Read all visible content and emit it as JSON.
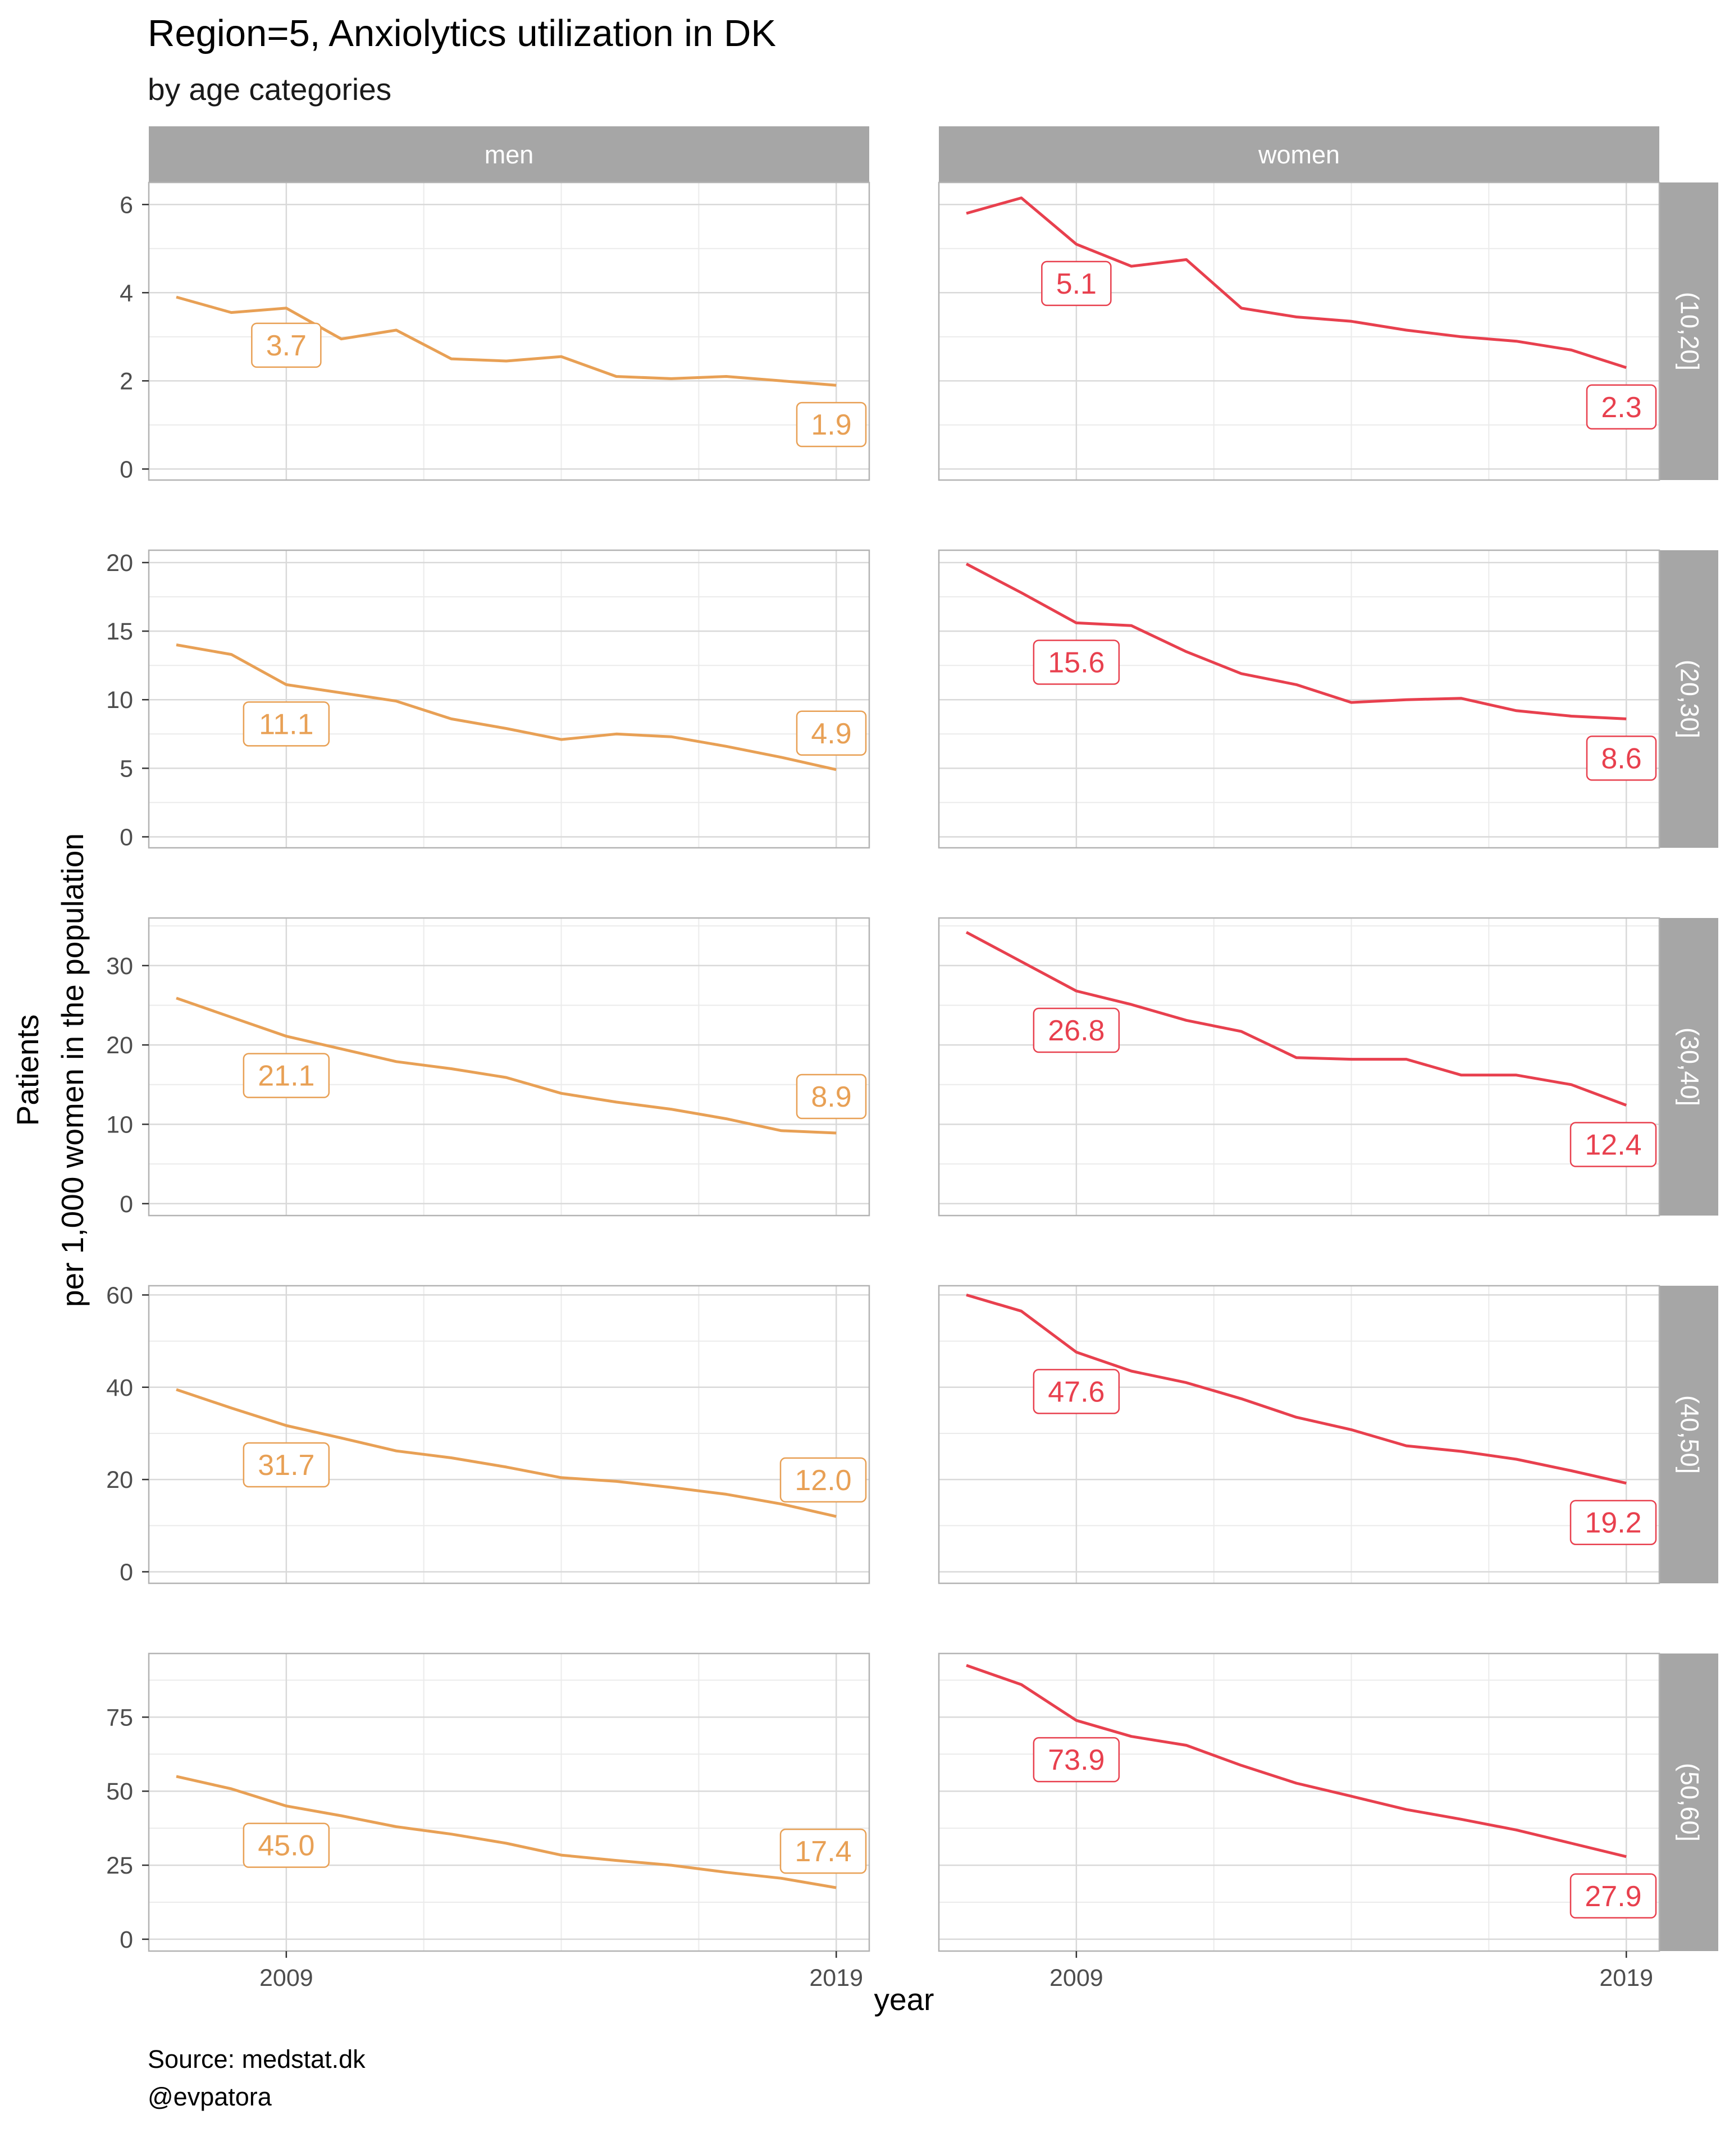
{
  "title": "Region=5, Anxiolytics utilization in DK",
  "subtitle": "by age categories",
  "caption_lines": [
    "Source: medstat.dk",
    "@evpatora"
  ],
  "colors": {
    "men": "#E8A055",
    "women": "#E8404E",
    "strip": "#A6A6A6",
    "grid_major": "#D9D9D9",
    "grid_minor": "#EBEBEB",
    "panel_border": "#B3B3B3"
  },
  "chart_data": {
    "type": "line",
    "xlabel": "year",
    "ylabel_lines": [
      "Patients",
      "per 1,000 women in the population"
    ],
    "x_ticks": [
      2009,
      2019
    ],
    "xlim": [
      2006.5,
      2019.6
    ],
    "columns": [
      "men",
      "women"
    ],
    "rows": [
      "(10,20]",
      "(20,30]",
      "(30,40]",
      "(40,50]",
      "(50,60]"
    ],
    "panels": [
      {
        "row": "(10,20]",
        "ylim": [
          -0.25,
          6.5
        ],
        "y_ticks": [
          0,
          2,
          4,
          6
        ],
        "men": {
          "x": [
            2007,
            2008,
            2009,
            2010,
            2011,
            2012,
            2013,
            2014,
            2015,
            2016,
            2017,
            2018,
            2019
          ],
          "y": [
            3.9,
            3.55,
            3.65,
            2.95,
            3.15,
            2.5,
            2.45,
            2.55,
            2.1,
            2.05,
            2.1,
            2.0,
            1.9
          ],
          "labels": [
            {
              "x": 2009,
              "y": 3.7,
              "text": "3.7"
            },
            {
              "x": 2019,
              "y": 1.9,
              "text": "1.9"
            }
          ]
        },
        "women": {
          "x": [
            2007,
            2008,
            2009,
            2010,
            2011,
            2012,
            2013,
            2014,
            2015,
            2016,
            2017,
            2018,
            2019
          ],
          "y": [
            5.8,
            6.15,
            5.1,
            4.6,
            4.75,
            3.65,
            3.45,
            3.35,
            3.15,
            3.0,
            2.9,
            2.7,
            2.3
          ],
          "labels": [
            {
              "x": 2009,
              "y": 5.1,
              "text": "5.1"
            },
            {
              "x": 2019,
              "y": 2.3,
              "text": "2.3"
            }
          ]
        }
      },
      {
        "row": "(20,30]",
        "ylim": [
          -0.8,
          20.9
        ],
        "y_ticks": [
          0,
          5,
          10,
          15,
          20
        ],
        "men": {
          "x": [
            2007,
            2008,
            2009,
            2010,
            2011,
            2012,
            2013,
            2014,
            2015,
            2016,
            2017,
            2018,
            2019
          ],
          "y": [
            14.0,
            13.3,
            11.1,
            10.5,
            9.9,
            8.6,
            7.9,
            7.1,
            7.5,
            7.3,
            6.6,
            5.8,
            4.9
          ],
          "labels": [
            {
              "x": 2009,
              "y": 11.1,
              "text": "11.1"
            },
            {
              "x": 2019,
              "y": 4.9,
              "text": "4.9"
            }
          ]
        },
        "women": {
          "x": [
            2007,
            2008,
            2009,
            2010,
            2011,
            2012,
            2013,
            2014,
            2015,
            2016,
            2017,
            2018,
            2019
          ],
          "y": [
            19.9,
            17.8,
            15.6,
            15.4,
            13.5,
            11.9,
            11.1,
            9.8,
            10.0,
            10.1,
            9.2,
            8.8,
            8.6
          ],
          "labels": [
            {
              "x": 2009,
              "y": 15.6,
              "text": "15.6"
            },
            {
              "x": 2019,
              "y": 8.6,
              "text": "8.6"
            }
          ]
        }
      },
      {
        "row": "(30,40]",
        "ylim": [
          -1.5,
          36.0
        ],
        "y_ticks": [
          0,
          10,
          20,
          30
        ],
        "men": {
          "x": [
            2007,
            2008,
            2009,
            2010,
            2011,
            2012,
            2013,
            2014,
            2015,
            2016,
            2017,
            2018,
            2019
          ],
          "y": [
            25.9,
            23.5,
            21.1,
            19.5,
            17.9,
            17.0,
            15.9,
            13.9,
            12.8,
            11.9,
            10.7,
            9.2,
            8.9
          ],
          "labels": [
            {
              "x": 2009,
              "y": 21.1,
              "text": "21.1"
            },
            {
              "x": 2019,
              "y": 8.9,
              "text": "8.9"
            }
          ]
        },
        "women": {
          "x": [
            2007,
            2008,
            2009,
            2010,
            2011,
            2012,
            2013,
            2014,
            2015,
            2016,
            2017,
            2018,
            2019
          ],
          "y": [
            34.2,
            30.5,
            26.8,
            25.1,
            23.1,
            21.7,
            18.4,
            18.2,
            18.2,
            16.2,
            16.2,
            15.0,
            12.4
          ],
          "labels": [
            {
              "x": 2009,
              "y": 26.8,
              "text": "26.8"
            },
            {
              "x": 2019,
              "y": 12.4,
              "text": "12.4"
            }
          ]
        }
      },
      {
        "row": "(40,50]",
        "ylim": [
          -2.5,
          62.0
        ],
        "y_ticks": [
          0,
          20,
          40,
          60
        ],
        "men": {
          "x": [
            2007,
            2008,
            2009,
            2010,
            2011,
            2012,
            2013,
            2014,
            2015,
            2016,
            2017,
            2018,
            2019
          ],
          "y": [
            39.5,
            35.5,
            31.7,
            29.0,
            26.2,
            24.7,
            22.7,
            20.4,
            19.6,
            18.3,
            16.8,
            14.7,
            12.0
          ],
          "labels": [
            {
              "x": 2009,
              "y": 31.7,
              "text": "31.7"
            },
            {
              "x": 2019,
              "y": 12.0,
              "text": "12.0"
            }
          ]
        },
        "women": {
          "x": [
            2007,
            2008,
            2009,
            2010,
            2011,
            2012,
            2013,
            2014,
            2015,
            2016,
            2017,
            2018,
            2019
          ],
          "y": [
            60.0,
            56.5,
            47.6,
            43.5,
            41.0,
            37.5,
            33.5,
            30.8,
            27.3,
            26.1,
            24.4,
            21.9,
            19.2
          ],
          "labels": [
            {
              "x": 2009,
              "y": 47.6,
              "text": "47.6"
            },
            {
              "x": 2019,
              "y": 19.2,
              "text": "19.2"
            }
          ]
        }
      },
      {
        "row": "(50,60]",
        "ylim": [
          -4.0,
          96.5
        ],
        "y_ticks": [
          0,
          25,
          50,
          75
        ],
        "men": {
          "x": [
            2007,
            2008,
            2009,
            2010,
            2011,
            2012,
            2013,
            2014,
            2015,
            2016,
            2017,
            2018,
            2019
          ],
          "y": [
            55.0,
            50.8,
            45.0,
            41.7,
            38.0,
            35.5,
            32.4,
            28.4,
            26.6,
            25.0,
            22.6,
            20.6,
            17.4
          ],
          "labels": [
            {
              "x": 2009,
              "y": 45.0,
              "text": "45.0"
            },
            {
              "x": 2019,
              "y": 17.4,
              "text": "17.4"
            }
          ]
        },
        "women": {
          "x": [
            2007,
            2008,
            2009,
            2010,
            2011,
            2012,
            2013,
            2014,
            2015,
            2016,
            2017,
            2018,
            2019
          ],
          "y": [
            92.5,
            86.0,
            73.9,
            68.5,
            65.5,
            58.7,
            52.7,
            48.3,
            43.8,
            40.5,
            36.9,
            32.4,
            27.9
          ],
          "labels": [
            {
              "x": 2009,
              "y": 73.9,
              "text": "73.9"
            },
            {
              "x": 2019,
              "y": 27.9,
              "text": "27.9"
            }
          ]
        }
      }
    ]
  }
}
